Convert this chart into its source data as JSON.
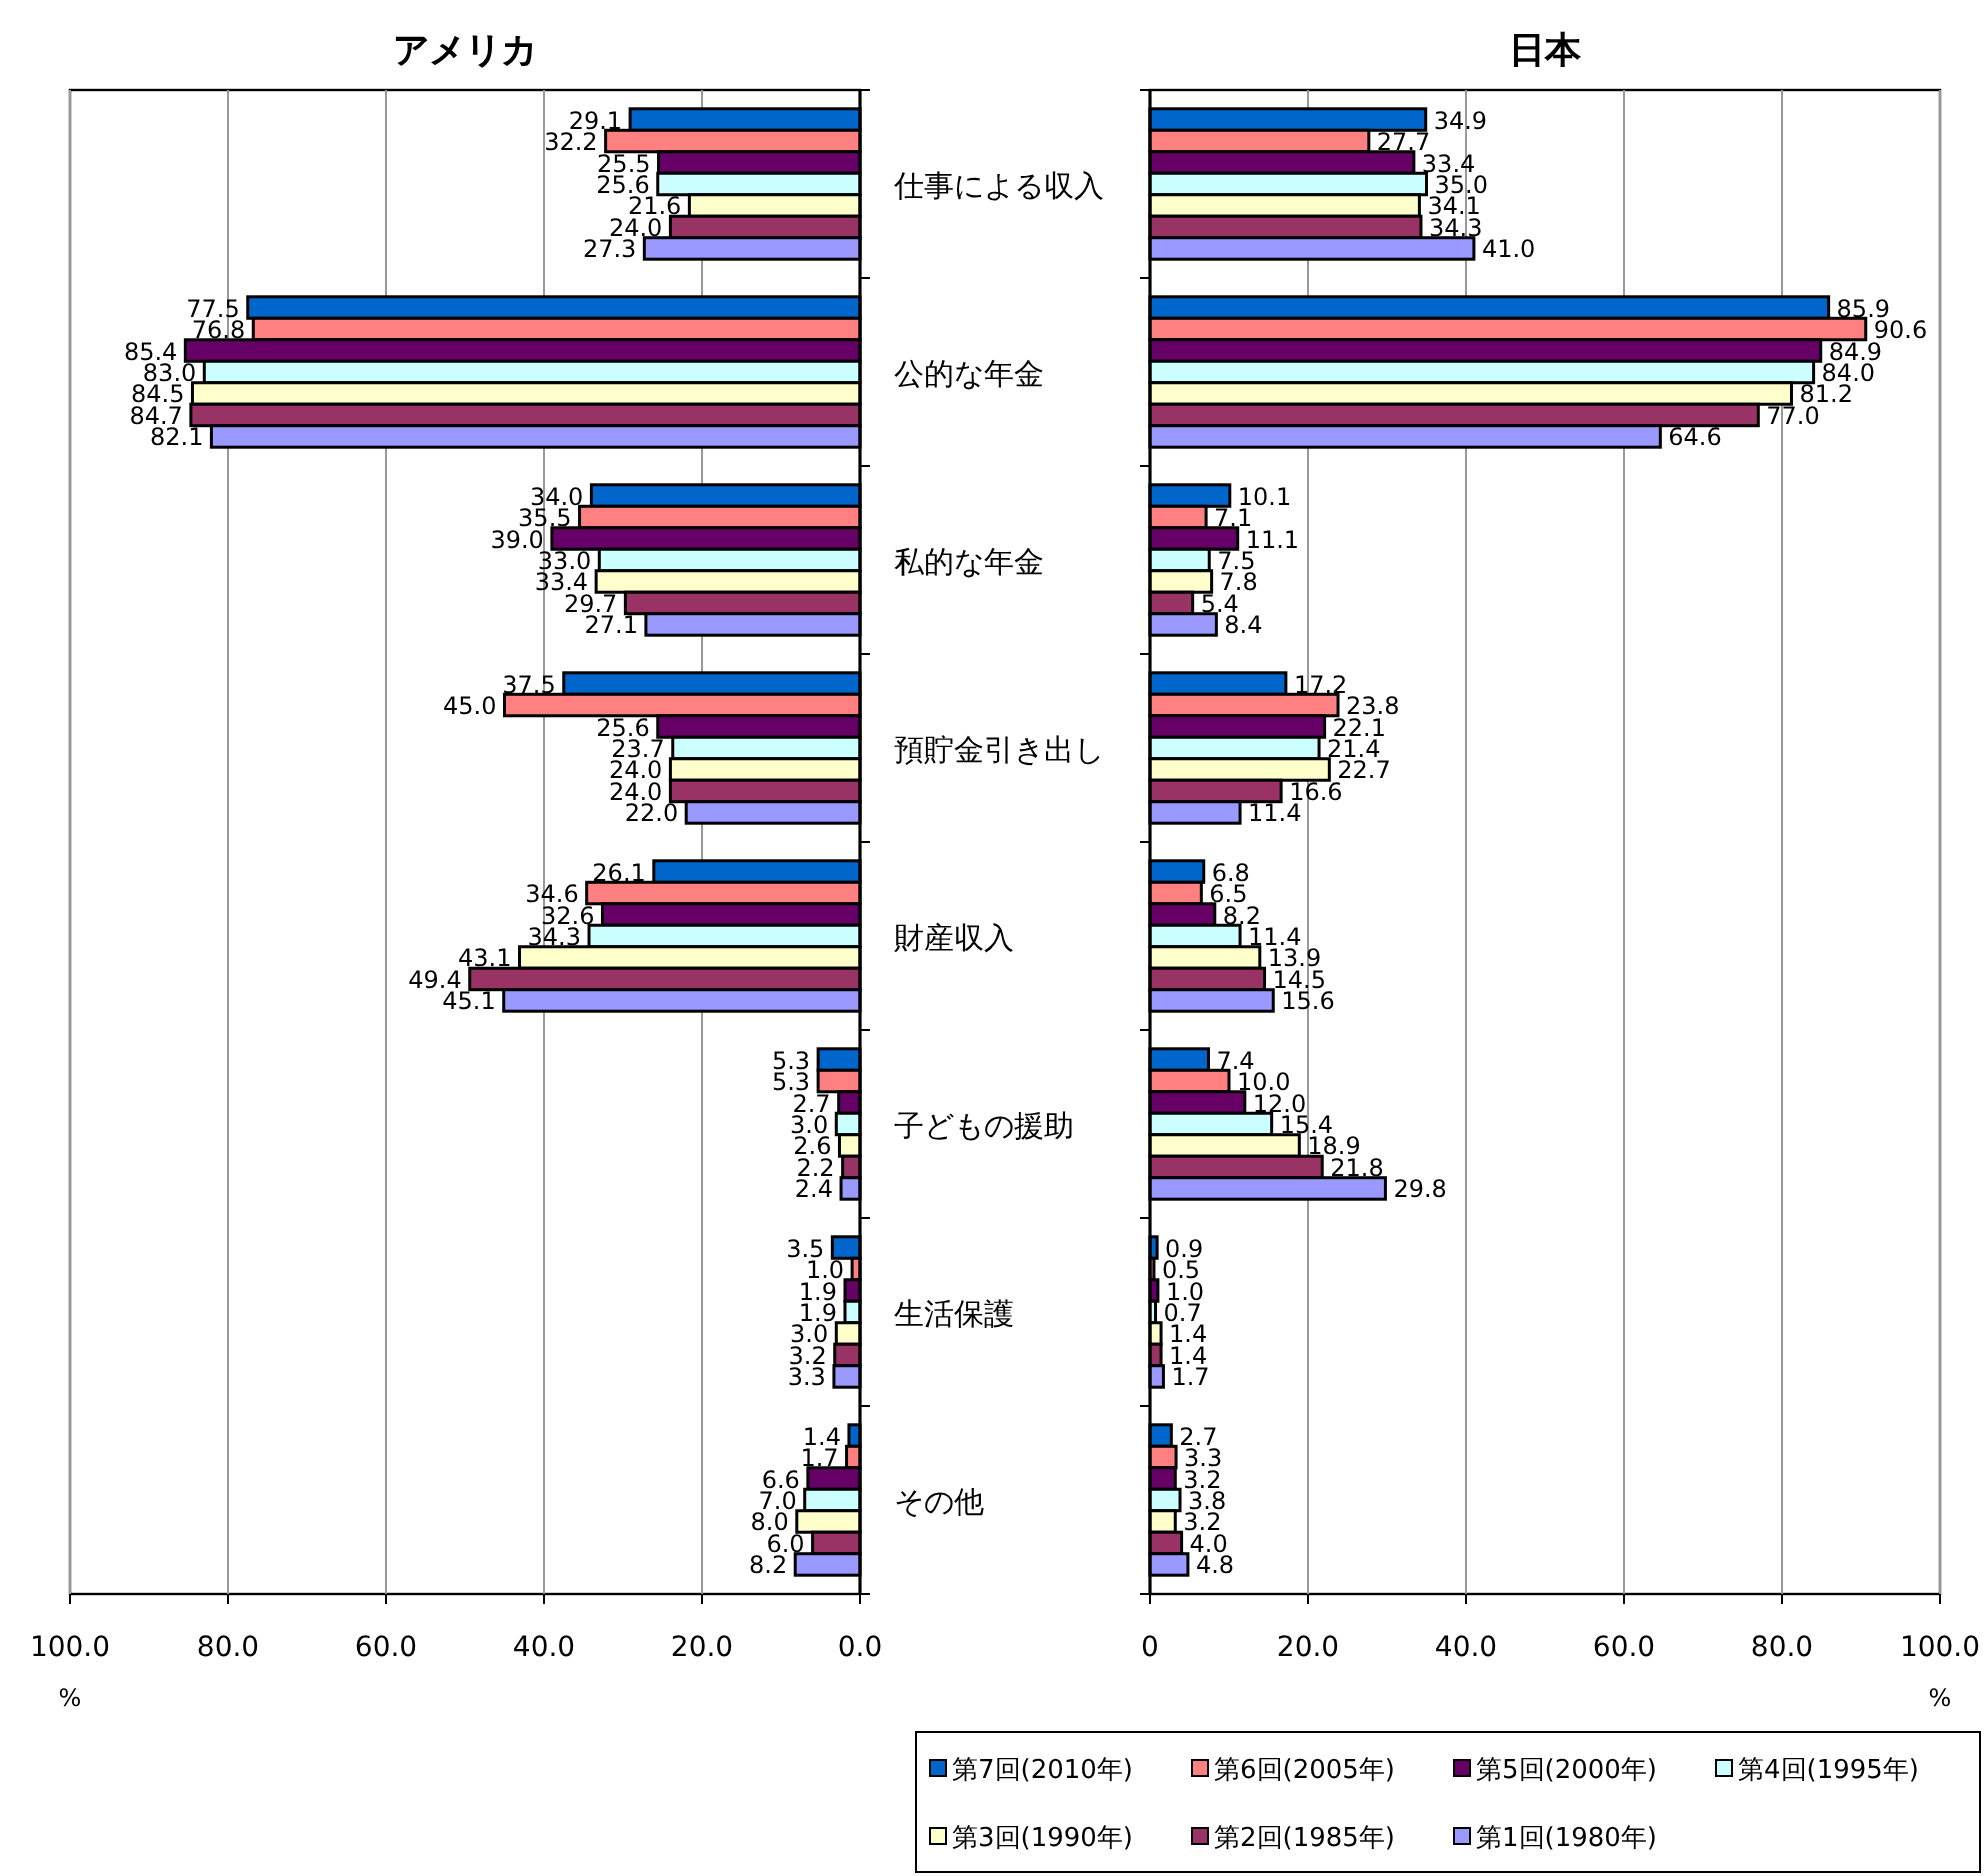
{
  "chart_data": [
    {
      "type": "bar",
      "orientation": "horizontal",
      "title": "アメリカ",
      "xlabel": "%",
      "categories": [
        "仕事による収入",
        "公的な年金",
        "私的な年金",
        "預貯金引き出し",
        "財産収入",
        "子どもの援助",
        "生活保護",
        "その他"
      ],
      "xlim": [
        100,
        0
      ],
      "xticks": [
        {
          "value": 100,
          "label": "100.0"
        },
        {
          "value": 80,
          "label": "80.0"
        },
        {
          "value": 60,
          "label": "60.0"
        },
        {
          "value": 40,
          "label": "40.0"
        },
        {
          "value": 20,
          "label": "20.0"
        },
        {
          "value": 0,
          "label": "0.0"
        }
      ],
      "grid": "x",
      "series": [
        {
          "color": "#0066cc",
          "values": [
            29.1,
            77.5,
            34.0,
            37.5,
            26.1,
            5.3,
            3.5,
            1.4
          ],
          "value_labels": [
            "29.1",
            "77.5",
            "34.0",
            "37.5",
            "26.1",
            "5.3",
            "3.5",
            "1.4"
          ]
        },
        {
          "color": "#ff8080",
          "values": [
            32.2,
            76.8,
            35.5,
            45.0,
            34.6,
            5.3,
            1.0,
            1.7
          ],
          "value_labels": [
            "32.2",
            "76.8",
            "35.5",
            "45.0",
            "34.6",
            "5.3",
            "1.0",
            "1.7"
          ]
        },
        {
          "color": "#660066",
          "values": [
            25.5,
            85.4,
            39.0,
            25.6,
            32.6,
            2.7,
            1.9,
            6.6
          ],
          "value_labels": [
            "25.5",
            "85.4",
            "39.0",
            "25.6",
            "32.6",
            "2.7",
            "1.9",
            "6.6"
          ]
        },
        {
          "color": "#ccffff",
          "values": [
            25.6,
            83.0,
            33.0,
            23.7,
            34.3,
            3.0,
            1.9,
            7.0
          ],
          "value_labels": [
            "25.6",
            "83.0",
            "33.0",
            "23.7",
            "34.3",
            "3.0",
            "1.9",
            "7.0"
          ]
        },
        {
          "color": "#ffffcc",
          "values": [
            21.6,
            84.5,
            33.4,
            24.0,
            43.1,
            2.6,
            3.0,
            8.0
          ],
          "value_labels": [
            "21.6",
            "84.5",
            "33.4",
            "24.0",
            "43.1",
            "2.6",
            "3.0",
            "8.0"
          ]
        },
        {
          "color": "#993366",
          "values": [
            24.0,
            84.7,
            29.7,
            24.0,
            49.4,
            2.2,
            3.2,
            6.0
          ],
          "value_labels": [
            "24.0",
            "84.7",
            "29.7",
            "24.0",
            "49.4",
            "2.2",
            "3.2",
            "6.0"
          ]
        },
        {
          "color": "#9999ff",
          "values": [
            27.3,
            82.1,
            27.1,
            22.0,
            45.1,
            2.4,
            3.3,
            8.2
          ],
          "value_labels": [
            "27.3",
            "82.1",
            "27.1",
            "22.0",
            "45.1",
            "2.4",
            "3.3",
            "8.2"
          ]
        }
      ]
    },
    {
      "type": "bar",
      "orientation": "horizontal",
      "title": "日本",
      "xlabel": "%",
      "categories": [
        null,
        null,
        null,
        null,
        null,
        null,
        null,
        null
      ],
      "xlim": [
        0,
        100
      ],
      "xticks": [
        0,
        {
          "value": 20,
          "label": "20.0"
        },
        {
          "value": 40,
          "label": "40.0"
        },
        {
          "value": 60,
          "label": "60.0"
        },
        {
          "value": 80,
          "label": "80.0"
        },
        {
          "value": 100,
          "label": "100.0"
        }
      ],
      "grid": "x",
      "tick_labels": "x",
      "legend": "bottom",
      "series": [
        {
          "name": "第7回(2010年)",
          "color": "#0066cc",
          "values": [
            34.9,
            85.9,
            10.1,
            17.2,
            6.8,
            7.4,
            0.9,
            2.7
          ],
          "value_labels": [
            "34.9",
            "85.9",
            "10.1",
            "17.2",
            "6.8",
            "7.4",
            "0.9",
            "2.7"
          ]
        },
        {
          "name": "第6回(2005年)",
          "color": "#ff8080",
          "values": [
            27.7,
            90.6,
            7.1,
            23.8,
            6.5,
            10.0,
            0.5,
            3.3
          ],
          "value_labels": [
            "27.7",
            "90.6",
            "7.1",
            "23.8",
            "6.5",
            "10.0",
            "0.5",
            "3.3"
          ]
        },
        {
          "name": "第5回(2000年)",
          "color": "#660066",
          "values": [
            33.4,
            84.9,
            11.1,
            22.1,
            8.2,
            12.0,
            1.0,
            3.2
          ],
          "value_labels": [
            "33.4",
            "84.9",
            "11.1",
            "22.1",
            "8.2",
            "12.0",
            "1.0",
            "3.2"
          ]
        },
        {
          "name": "第4回(1995年)",
          "color": "#ccffff",
          "values": [
            35.0,
            84.0,
            7.5,
            21.4,
            11.4,
            15.4,
            0.7,
            3.8
          ],
          "value_labels": [
            "35.0",
            "84.0",
            "7.5",
            "21.4",
            "11.4",
            "15.4",
            "0.7",
            "3.8"
          ]
        },
        {
          "name": "第3回(1990年)",
          "color": "#ffffcc",
          "values": [
            34.1,
            81.2,
            7.8,
            22.7,
            13.9,
            18.9,
            1.4,
            3.2
          ],
          "value_labels": [
            "34.1",
            "81.2",
            "7.8",
            "22.7",
            "13.9",
            "18.9",
            "1.4",
            "3.2"
          ]
        },
        {
          "name": "第2回(1985年)",
          "color": "#993366",
          "values": [
            34.3,
            77.0,
            5.4,
            16.6,
            14.5,
            21.8,
            1.4,
            4.0
          ],
          "value_labels": [
            "34.3",
            "77.0",
            "5.4",
            "16.6",
            "14.5",
            "21.8",
            "1.4",
            "4.0"
          ]
        },
        {
          "name": "第1回(1980年)",
          "color": "#9999ff",
          "values": [
            41.0,
            64.6,
            8.4,
            11.4,
            15.6,
            29.8,
            1.7,
            4.8
          ],
          "value_labels": [
            "41.0",
            "64.6",
            "8.4",
            "11.4",
            "15.6",
            "29.8",
            "1.7",
            "4.8"
          ]
        }
      ]
    }
  ]
}
